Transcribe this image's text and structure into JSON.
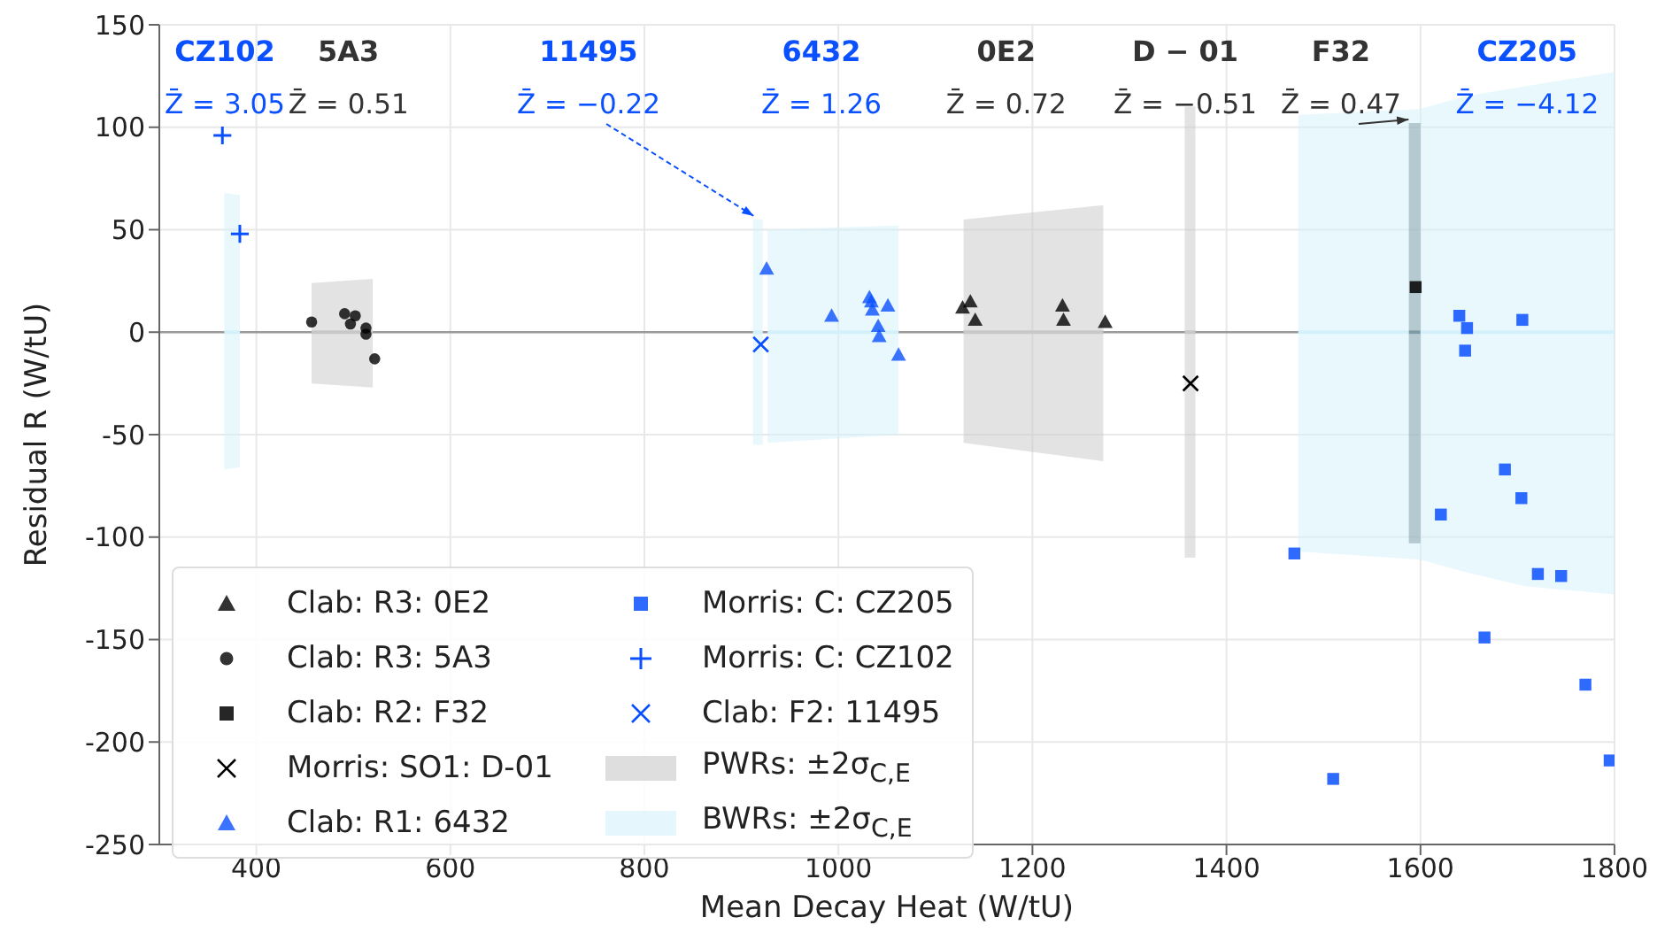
{
  "chart_data": {
    "type": "scatter",
    "xlabel": "Mean Decay Heat (W/tU)",
    "ylabel": "Residual R (W/tU)",
    "xlim": [
      300,
      1800
    ],
    "xticks": [
      400,
      600,
      800,
      1000,
      1200,
      1400,
      1600,
      1800
    ],
    "ylim": [
      -250,
      150
    ],
    "yticks": [
      -250,
      -200,
      -150,
      -100,
      -50,
      0,
      50,
      100,
      150
    ],
    "grid": true,
    "legend": "bottom left",
    "ref_lines": [
      {
        "axis": "y",
        "value": 0,
        "color": "#9a9a9a"
      }
    ],
    "series": [
      {
        "name": "Clab: R3: 0E2",
        "color": "#000000",
        "marker": "triangle",
        "x": [
          1128,
          1136,
          1141,
          1231,
          1232,
          1275
        ],
        "values": [
          12,
          15,
          6,
          13,
          6,
          5
        ]
      },
      {
        "name": "Clab: R3: 5A3",
        "color": "#000000",
        "marker": "circle",
        "x": [
          457,
          491,
          497,
          502,
          513,
          513,
          522
        ],
        "values": [
          5,
          9,
          4,
          8,
          2,
          -1,
          -13
        ]
      },
      {
        "name": "Clab: R2: F32",
        "color": "#000000",
        "marker": "square",
        "x": [
          1595
        ],
        "values": [
          22
        ]
      },
      {
        "name": "Morris: SO1: D-01",
        "color": "#000000",
        "marker": "cross",
        "x": [
          1363
        ],
        "values": [
          -25
        ]
      },
      {
        "name": "Clab: R1: 6432",
        "color": "#0a50ff",
        "marker": "triangle",
        "x": [
          926,
          993,
          1032,
          1034,
          1035,
          1051,
          1041,
          1042,
          1062
        ],
        "values": [
          31,
          8,
          17,
          15,
          11,
          13,
          3,
          -2,
          -11
        ]
      },
      {
        "name": "Morris: C: CZ205",
        "color": "#0a50ff",
        "marker": "square",
        "x": [
          1470,
          1510,
          1621,
          1640,
          1648,
          1646,
          1666,
          1687,
          1704,
          1705,
          1721,
          1745,
          1770,
          1795
        ],
        "values": [
          -108,
          -218,
          -89,
          8,
          2,
          -9,
          -149,
          -67,
          -81,
          6,
          -118,
          -119,
          -172,
          -209
        ]
      },
      {
        "name": "Morris: C: CZ102",
        "color": "#0a50ff",
        "marker": "plus",
        "x": [
          365,
          383
        ],
        "values": [
          96,
          48
        ]
      },
      {
        "name": "Clab: F2: 11495",
        "color": "#0a50ff",
        "marker": "cross",
        "x": [
          920
        ],
        "values": [
          -6
        ]
      },
      {
        "type": "line",
        "name": "PWRs: ±2σ$_{C,E}$",
        "color": "#c8c8c8",
        "x": [
          457,
          520
        ],
        "values": [
          0,
          0
        ],
        "lower": [
          -25,
          -27
        ],
        "upper": [
          24,
          26
        ]
      },
      {
        "type": "line",
        "color": "#c8c8c8",
        "x": [
          1129,
          1273
        ],
        "values": [
          0,
          0
        ],
        "lower": [
          -54,
          -63
        ],
        "upper": [
          55,
          62
        ]
      },
      {
        "type": "line",
        "color": "#c8c8c8",
        "x": [
          1357,
          1368
        ],
        "values": [
          0,
          0
        ],
        "lower": [
          -110,
          -110
        ],
        "upper": [
          110,
          110
        ]
      },
      {
        "type": "line",
        "name": "BWRs: ±2σ$_{C,E}$",
        "color": "#d4f1fb",
        "x": [
          367,
          383
        ],
        "values": [
          0,
          0
        ],
        "lower": [
          -67,
          -66
        ],
        "upper": [
          68,
          67
        ]
      },
      {
        "type": "line",
        "color": "#d4f1fb",
        "x": [
          912,
          922
        ],
        "values": [
          0,
          0
        ],
        "lower": [
          -55,
          -55
        ],
        "upper": [
          55,
          55
        ]
      },
      {
        "type": "line",
        "color": "#d4f1fb",
        "x": [
          927,
          1062
        ],
        "values": [
          0,
          0
        ],
        "lower": [
          -54,
          -50
        ],
        "upper": [
          50,
          52
        ]
      },
      {
        "type": "line",
        "color": "#d4f1fb",
        "x": [
          1474,
          1600,
          1645,
          1708,
          1800
        ],
        "values": [
          0,
          0,
          0,
          0,
          0
        ],
        "lower": [
          -107,
          -111,
          -117,
          -124,
          -128
        ],
        "upper": [
          106,
          109,
          115,
          120,
          127
        ]
      },
      {
        "type": "line",
        "color": "#7f9aa3",
        "x": [
          1588,
          1600
        ],
        "values": [
          0,
          0
        ],
        "lower": [
          -103,
          -103
        ],
        "upper": [
          102,
          102
        ]
      }
    ],
    "annotations": [
      "CZ102",
      "Z̄ = 3.05",
      "5A3",
      "Z̄ = 0.51",
      "11495",
      {
        "text": "Z̄ = −0.22",
        "x": 920,
        "y": 55
      },
      "6432",
      "Z̄ = 1.26",
      "0E2",
      "Z̄ = 0.72",
      "D − 01",
      "Z̄ = −0.51",
      "F32",
      {
        "text": "Z̄ = 0.47",
        "x": 1595,
        "y": 102
      },
      "CZ205",
      "Z̄ = −4.12"
    ]
  }
}
